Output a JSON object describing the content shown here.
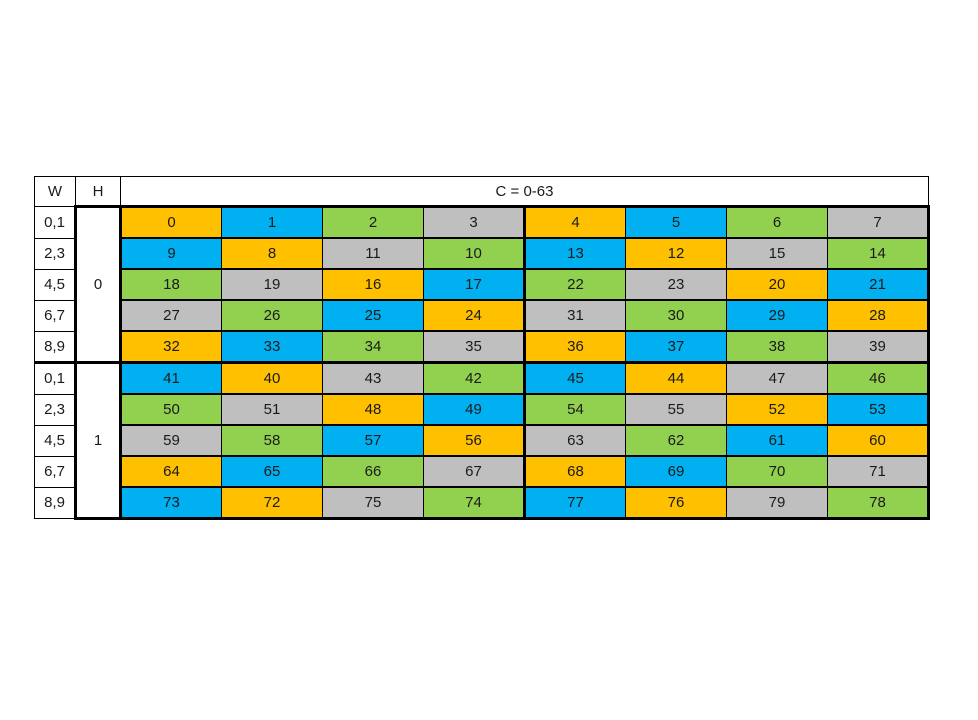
{
  "header": {
    "w_label": "W",
    "h_label": "H",
    "c_label": "C = 0-63"
  },
  "colors": {
    "orange": "#FFC000",
    "blue": "#00B0F0",
    "green": "#92D050",
    "gray": "#BFBFBF",
    "border": "#000000",
    "background": "#FFFFFF"
  },
  "row_labels": [
    "0,1",
    "2,3",
    "4,5",
    "6,7",
    "8,9"
  ],
  "blocks": [
    {
      "h_value": "0",
      "rows": [
        [
          {
            "v": "0",
            "c": "orange"
          },
          {
            "v": "1",
            "c": "blue"
          },
          {
            "v": "2",
            "c": "green"
          },
          {
            "v": "3",
            "c": "gray"
          },
          {
            "v": "4",
            "c": "orange"
          },
          {
            "v": "5",
            "c": "blue"
          },
          {
            "v": "6",
            "c": "green"
          },
          {
            "v": "7",
            "c": "gray"
          }
        ],
        [
          {
            "v": "9",
            "c": "blue"
          },
          {
            "v": "8",
            "c": "orange"
          },
          {
            "v": "11",
            "c": "gray"
          },
          {
            "v": "10",
            "c": "green"
          },
          {
            "v": "13",
            "c": "blue"
          },
          {
            "v": "12",
            "c": "orange"
          },
          {
            "v": "15",
            "c": "gray"
          },
          {
            "v": "14",
            "c": "green"
          }
        ],
        [
          {
            "v": "18",
            "c": "green"
          },
          {
            "v": "19",
            "c": "gray"
          },
          {
            "v": "16",
            "c": "orange"
          },
          {
            "v": "17",
            "c": "blue"
          },
          {
            "v": "22",
            "c": "green"
          },
          {
            "v": "23",
            "c": "gray"
          },
          {
            "v": "20",
            "c": "orange"
          },
          {
            "v": "21",
            "c": "blue"
          }
        ],
        [
          {
            "v": "27",
            "c": "gray"
          },
          {
            "v": "26",
            "c": "green"
          },
          {
            "v": "25",
            "c": "blue"
          },
          {
            "v": "24",
            "c": "orange"
          },
          {
            "v": "31",
            "c": "gray"
          },
          {
            "v": "30",
            "c": "green"
          },
          {
            "v": "29",
            "c": "blue"
          },
          {
            "v": "28",
            "c": "orange"
          }
        ],
        [
          {
            "v": "32",
            "c": "orange"
          },
          {
            "v": "33",
            "c": "blue"
          },
          {
            "v": "34",
            "c": "green"
          },
          {
            "v": "35",
            "c": "gray"
          },
          {
            "v": "36",
            "c": "orange"
          },
          {
            "v": "37",
            "c": "blue"
          },
          {
            "v": "38",
            "c": "green"
          },
          {
            "v": "39",
            "c": "gray"
          }
        ]
      ]
    },
    {
      "h_value": "1",
      "rows": [
        [
          {
            "v": "41",
            "c": "blue"
          },
          {
            "v": "40",
            "c": "orange"
          },
          {
            "v": "43",
            "c": "gray"
          },
          {
            "v": "42",
            "c": "green"
          },
          {
            "v": "45",
            "c": "blue"
          },
          {
            "v": "44",
            "c": "orange"
          },
          {
            "v": "47",
            "c": "gray"
          },
          {
            "v": "46",
            "c": "green"
          }
        ],
        [
          {
            "v": "50",
            "c": "green"
          },
          {
            "v": "51",
            "c": "gray"
          },
          {
            "v": "48",
            "c": "orange"
          },
          {
            "v": "49",
            "c": "blue"
          },
          {
            "v": "54",
            "c": "green"
          },
          {
            "v": "55",
            "c": "gray"
          },
          {
            "v": "52",
            "c": "orange"
          },
          {
            "v": "53",
            "c": "blue"
          }
        ],
        [
          {
            "v": "59",
            "c": "gray"
          },
          {
            "v": "58",
            "c": "green"
          },
          {
            "v": "57",
            "c": "blue"
          },
          {
            "v": "56",
            "c": "orange"
          },
          {
            "v": "63",
            "c": "gray"
          },
          {
            "v": "62",
            "c": "green"
          },
          {
            "v": "61",
            "c": "blue"
          },
          {
            "v": "60",
            "c": "orange"
          }
        ],
        [
          {
            "v": "64",
            "c": "orange"
          },
          {
            "v": "65",
            "c": "blue"
          },
          {
            "v": "66",
            "c": "green"
          },
          {
            "v": "67",
            "c": "gray"
          },
          {
            "v": "68",
            "c": "orange"
          },
          {
            "v": "69",
            "c": "blue"
          },
          {
            "v": "70",
            "c": "green"
          },
          {
            "v": "71",
            "c": "gray"
          }
        ],
        [
          {
            "v": "73",
            "c": "blue"
          },
          {
            "v": "72",
            "c": "orange"
          },
          {
            "v": "75",
            "c": "gray"
          },
          {
            "v": "74",
            "c": "green"
          },
          {
            "v": "77",
            "c": "blue"
          },
          {
            "v": "76",
            "c": "orange"
          },
          {
            "v": "79",
            "c": "gray"
          },
          {
            "v": "78",
            "c": "green"
          }
        ]
      ]
    }
  ]
}
